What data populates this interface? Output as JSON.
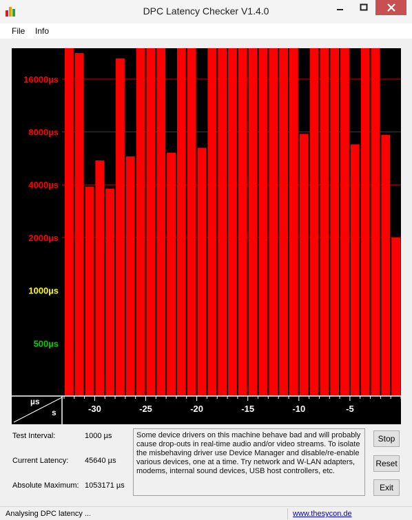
{
  "window": {
    "title": "DPC Latency Checker V1.4.0",
    "icon": "bar-chart-app-icon",
    "controls": [
      "minimize-icon",
      "maximize-icon",
      "close-icon"
    ]
  },
  "menu": {
    "file": "File",
    "info": "Info"
  },
  "axis_corner": {
    "top": "µs",
    "bottom": "s"
  },
  "colors": {
    "bar": "#ff0000",
    "plot_bg": "#000000",
    "red_label": "#ff0000",
    "yellow_label": "#ffff00",
    "green_label": "#00cc00"
  },
  "chart_data": {
    "type": "bar",
    "title": "",
    "xlabel": "s",
    "ylabel": "µs",
    "yscale": "log",
    "ylim": [
      250,
      24000
    ],
    "xlim": [
      -33.2,
      0
    ],
    "y_tick_labels": [
      {
        "label": "16000µs",
        "value": 16000,
        "color": "red"
      },
      {
        "label": "8000µs",
        "value": 8000,
        "color": "red"
      },
      {
        "label": "4000µs",
        "value": 4000,
        "color": "red"
      },
      {
        "label": "2000µs",
        "value": 2000,
        "color": "red"
      },
      {
        "label": "1000µs",
        "value": 1000,
        "color": "yellow"
      },
      {
        "label": "500µs",
        "value": 500,
        "color": "green"
      }
    ],
    "y_gridlines": [
      16000,
      8000,
      4000,
      2000
    ],
    "x_ticks": [
      -30,
      -25,
      -20,
      -15,
      -10,
      -5
    ],
    "x_tick_labels": [
      "-30",
      "-25",
      "-20",
      "-15",
      "-10",
      "-5"
    ],
    "grid": true,
    "bar_seconds": [
      -33,
      -32,
      -31,
      -30,
      -29,
      -28,
      -27,
      -26,
      -25,
      -24,
      -23,
      -22,
      -21,
      -20,
      -19,
      -18,
      -17,
      -16,
      -15,
      -14,
      -13,
      -12,
      -11,
      -10,
      -9,
      -8,
      -7,
      -6,
      -5,
      -4,
      -3,
      -2,
      -1
    ],
    "values": [
      24000,
      22500,
      3900,
      5500,
      3800,
      21000,
      5800,
      24000,
      24000,
      24000,
      6100,
      24000,
      24000,
      6500,
      24000,
      24000,
      24000,
      24000,
      24000,
      24000,
      24000,
      24000,
      24000,
      7800,
      24000,
      24000,
      24000,
      24000,
      6800,
      24000,
      24000,
      7700,
      2000
    ]
  },
  "stats": {
    "test_interval_label": "Test Interval:",
    "test_interval_value": "1000 µs",
    "current_latency_label": "Current Latency:",
    "current_latency_value": "45640 µs",
    "absolute_maximum_label": "Absolute Maximum:",
    "absolute_maximum_value": "1053171 µs"
  },
  "message": "Some device drivers on this machine behave bad and will probably cause drop-outs in real-time audio and/or video streams. To isolate the misbehaving driver use Device Manager and disable/re-enable various devices, one at a time. Try network and W-LAN adapters, modems, internal sound devices, USB host controllers, etc.",
  "buttons": {
    "stop": "Stop",
    "reset": "Reset",
    "exit": "Exit"
  },
  "status": {
    "text": "Analysing DPC latency ...",
    "link": "www.thesycon.de"
  }
}
